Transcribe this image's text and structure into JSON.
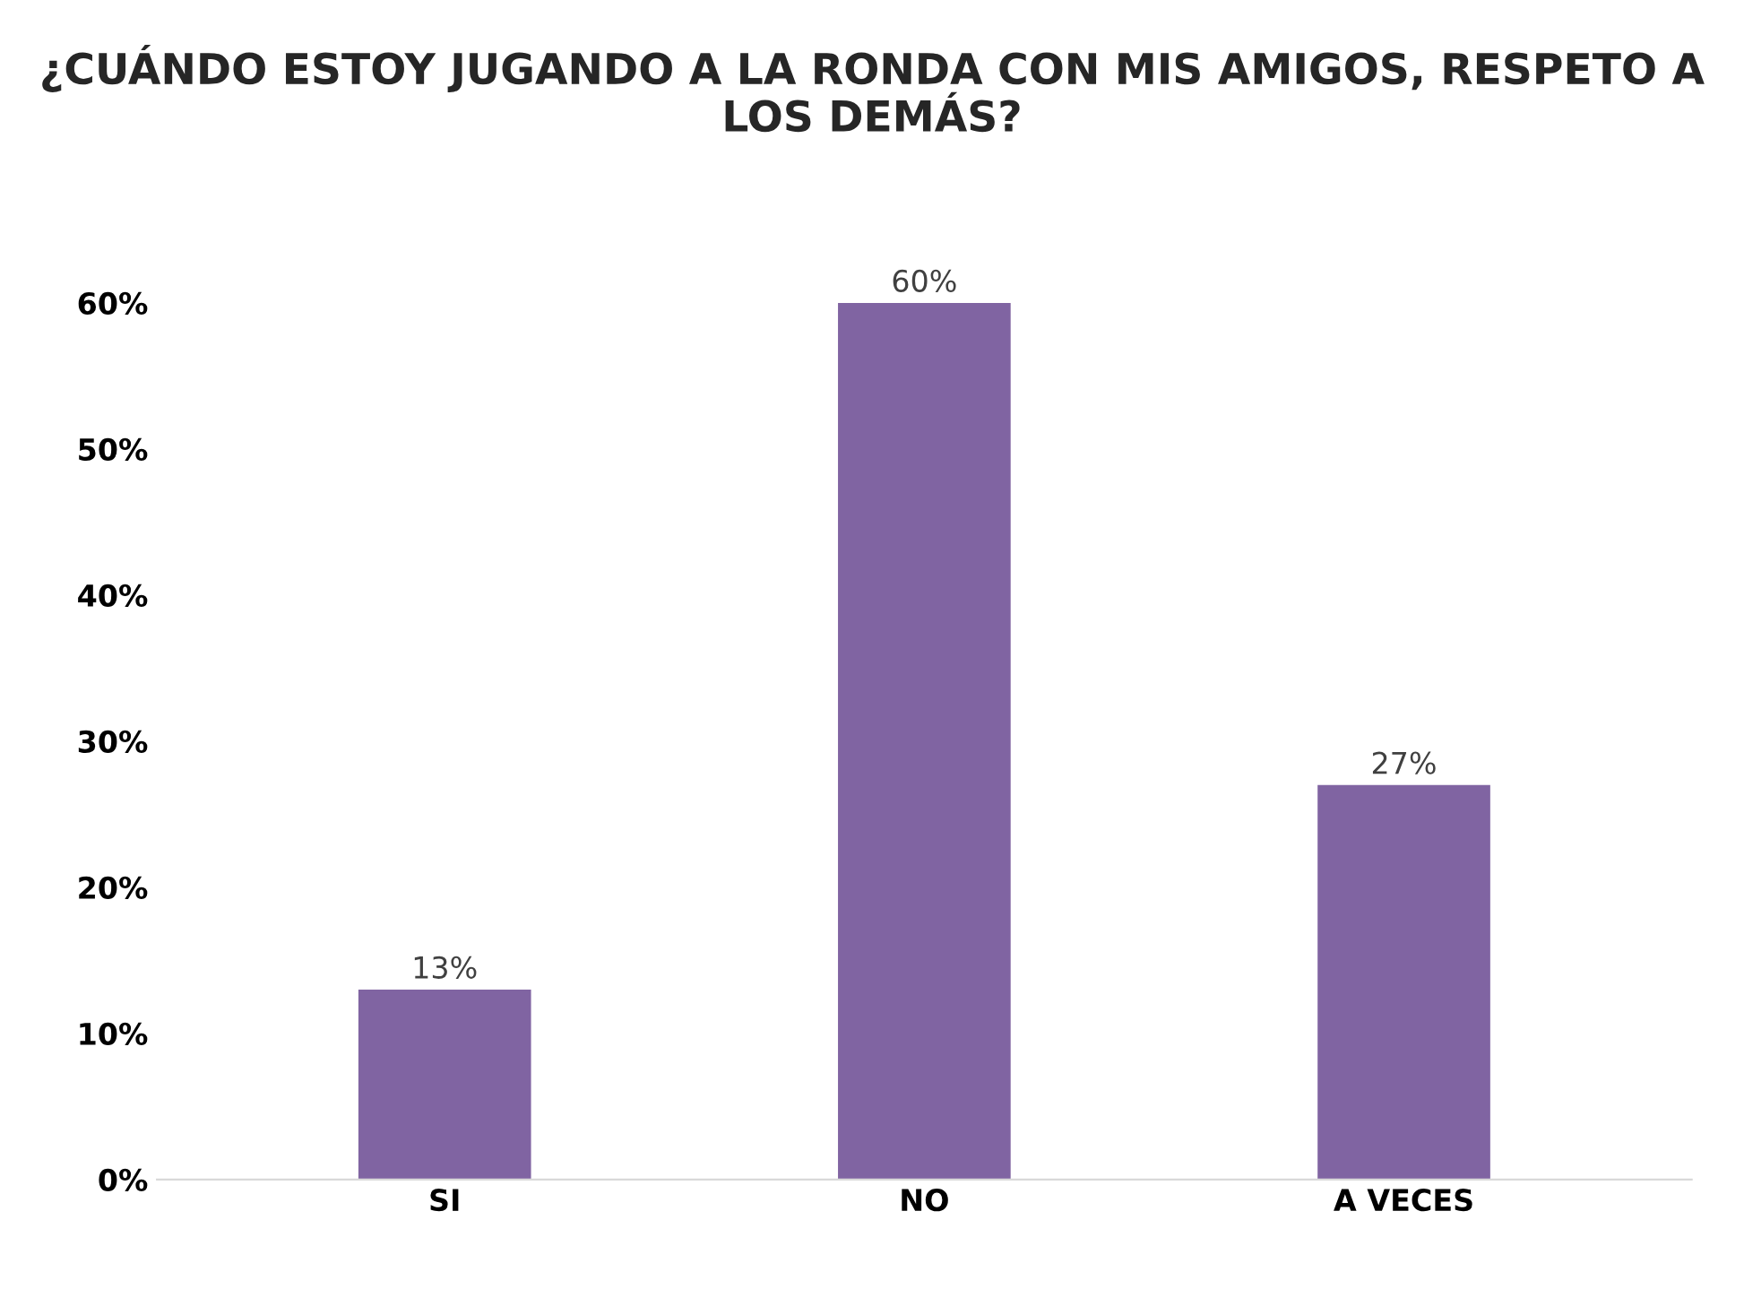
{
  "chart_data": {
    "type": "bar",
    "title": "¿CUÁNDO ESTOY JUGANDO A LA RONDA CON MIS AMIGOS, RESPETO A LOS DEMÁS?",
    "categories": [
      "SI",
      "NO",
      "A VECES"
    ],
    "values": [
      13,
      60,
      27
    ],
    "value_labels": [
      "13%",
      "60%",
      "27%"
    ],
    "color": "#8064a2",
    "ylim": [
      0,
      60
    ],
    "yticks": [
      {
        "value": 0,
        "label": "0%"
      },
      {
        "value": 10,
        "label": "10%"
      },
      {
        "value": 20,
        "label": "20%"
      },
      {
        "value": 30,
        "label": "30%"
      },
      {
        "value": 40,
        "label": "40%"
      },
      {
        "value": 50,
        "label": "50%"
      },
      {
        "value": 60,
        "label": "60%"
      }
    ],
    "grid": false,
    "legend": false
  }
}
